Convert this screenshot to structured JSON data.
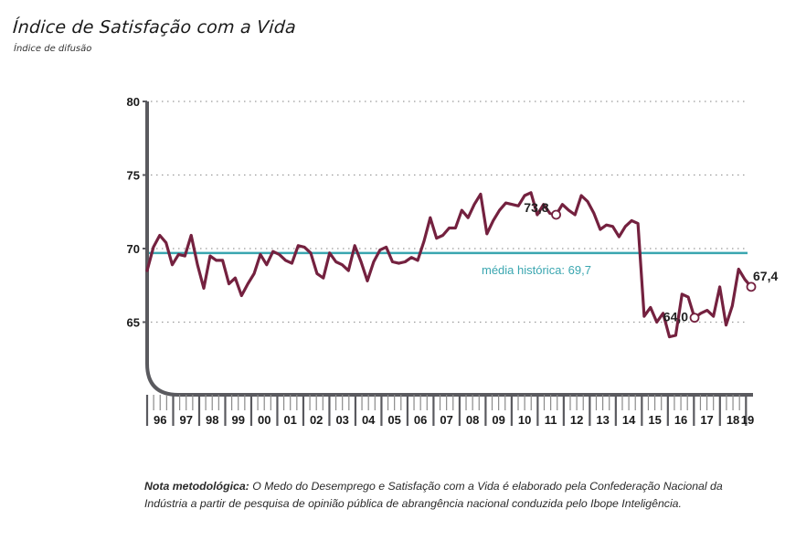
{
  "header": {
    "title": "Índice de Satisfação com a Vida",
    "subtitle": "Índice de difusão"
  },
  "note": {
    "label": "Nota metodológica:",
    "text": " O Medo do Desemprego e Satisfação com a Vida é elaborado pela Confederação Nacional da Indústria a partir de pesquisa de opinião pública de abrangência nacional conduzida pelo Ibope Inteligência."
  },
  "colors": {
    "series": "#74213f",
    "mean": "#3aa6b0",
    "axis": "#5a5a5f",
    "grid": "#9a9a9a"
  },
  "chart_data": {
    "type": "line",
    "title": "Índice de Satisfação com a Vida",
    "subtitle": "Índice de difusão",
    "xlabel": "",
    "ylabel": "",
    "ylim": [
      60,
      80
    ],
    "yticks": [
      65,
      70,
      75,
      80
    ],
    "ytick_labels": [
      "65",
      "70",
      "75",
      "80"
    ],
    "grid": "horizontal dotted",
    "xtick_labels": [
      "96",
      "97",
      "98",
      "99",
      "00",
      "01",
      "02",
      "03",
      "04",
      "05",
      "06",
      "07",
      "08",
      "09",
      "10",
      "11",
      "12",
      "13",
      "14",
      "15",
      "16",
      "17",
      "18",
      "19"
    ],
    "reference_line": {
      "value": 69.7,
      "label": "média histórica: 69,7"
    },
    "annotations": [
      {
        "label": "73,8",
        "value": 73.8,
        "point_index": 65
      },
      {
        "label": "64,0",
        "value": 64.0,
        "point_index": 87
      },
      {
        "label": "67,4",
        "value": 67.4,
        "point_index": 100
      }
    ],
    "series": [
      {
        "name": "Índice de Satisfação com a Vida",
        "x_start": 1996.0,
        "x_end": 2019.2,
        "values": [
          68.5,
          70.1,
          70.9,
          70.4,
          68.9,
          69.6,
          69.5,
          70.9,
          68.9,
          67.3,
          69.5,
          69.2,
          69.2,
          67.6,
          68.0,
          66.8,
          67.6,
          68.3,
          69.6,
          68.9,
          69.8,
          69.6,
          69.2,
          69.0,
          70.2,
          70.1,
          69.7,
          68.3,
          68.0,
          69.7,
          69.1,
          68.9,
          68.5,
          70.2,
          69.1,
          67.8,
          69.1,
          69.9,
          70.1,
          69.1,
          69.0,
          69.1,
          69.4,
          69.2,
          70.5,
          72.1,
          70.7,
          70.9,
          71.4,
          71.4,
          72.6,
          72.1,
          73.0,
          73.7,
          71.0,
          71.9,
          72.6,
          73.1,
          73.0,
          72.9,
          73.6,
          73.8,
          72.3,
          73.0,
          72.4,
          72.3,
          73.0,
          72.6,
          72.3,
          73.6,
          73.2,
          72.4,
          71.3,
          71.6,
          71.5,
          70.8,
          71.5,
          71.9,
          71.7,
          65.4,
          66.0,
          65.0,
          65.6,
          64.0,
          64.1,
          66.9,
          66.7,
          65.3,
          65.6,
          65.8,
          65.4,
          67.4,
          64.8,
          66.1,
          68.6,
          67.9,
          67.4
        ]
      }
    ]
  }
}
